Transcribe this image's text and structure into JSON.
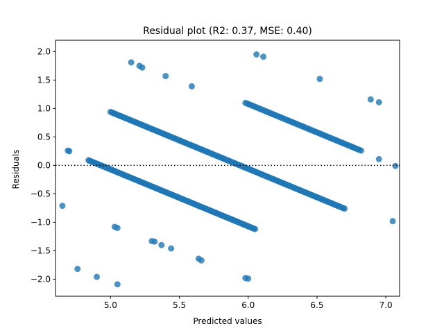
{
  "chart_data": {
    "type": "scatter",
    "title": "Residual plot (R2: 0.37, MSE: 0.40)",
    "xlabel": "Predicted values",
    "ylabel": "Residuals",
    "xlim": [
      4.6,
      7.1
    ],
    "ylim": [
      -2.3,
      2.2
    ],
    "xticks": [
      5.0,
      5.5,
      6.0,
      6.5,
      7.0
    ],
    "xtick_labels": [
      "5.0",
      "5.5",
      "6.0",
      "6.5",
      "7.0"
    ],
    "yticks": [
      -2.0,
      -1.5,
      -1.0,
      -0.5,
      0.0,
      0.5,
      1.0,
      1.5,
      2.0
    ],
    "ytick_labels": [
      "−2.0",
      "−1.5",
      "−1.0",
      "−0.5",
      "0.0",
      "0.5",
      "1.0",
      "1.5",
      "2.0"
    ],
    "reference_line": {
      "y": 0.0,
      "style": "dotted"
    },
    "grid": false,
    "legend": "none",
    "color": "#1f77b4",
    "point_alpha": 0.8,
    "band_slope": -1.0,
    "bands": [
      {
        "intercept": 4.93,
        "x_from": 4.84,
        "x_to": 6.05,
        "points": 130
      },
      {
        "intercept": 5.94,
        "x_from": 5.0,
        "x_to": 6.7,
        "points": 170
      },
      {
        "intercept": 7.08,
        "x_from": 5.98,
        "x_to": 6.82,
        "points": 72
      }
    ],
    "extra_points": [
      {
        "x": 4.65,
        "y": -0.71
      },
      {
        "x": 4.69,
        "y": 0.26
      },
      {
        "x": 4.7,
        "y": 0.25
      },
      {
        "x": 4.76,
        "y": -1.82
      },
      {
        "x": 4.9,
        "y": -1.96
      },
      {
        "x": 5.03,
        "y": -1.08
      },
      {
        "x": 5.05,
        "y": -1.1
      },
      {
        "x": 5.05,
        "y": -2.09
      },
      {
        "x": 5.15,
        "y": 1.81
      },
      {
        "x": 5.21,
        "y": 1.75
      },
      {
        "x": 5.23,
        "y": 1.72
      },
      {
        "x": 5.3,
        "y": -1.33
      },
      {
        "x": 5.32,
        "y": -1.34
      },
      {
        "x": 5.37,
        "y": -1.4
      },
      {
        "x": 5.4,
        "y": 1.57
      },
      {
        "x": 5.44,
        "y": -1.46
      },
      {
        "x": 5.59,
        "y": 1.39
      },
      {
        "x": 5.64,
        "y": -1.64
      },
      {
        "x": 5.66,
        "y": -1.67
      },
      {
        "x": 5.98,
        "y": -1.98
      },
      {
        "x": 6.0,
        "y": -1.99
      },
      {
        "x": 6.06,
        "y": 1.95
      },
      {
        "x": 6.11,
        "y": 1.91
      },
      {
        "x": 6.52,
        "y": 1.52
      },
      {
        "x": 6.89,
        "y": 1.16
      },
      {
        "x": 6.95,
        "y": 1.11
      },
      {
        "x": 6.95,
        "y": 0.11
      },
      {
        "x": 7.05,
        "y": -0.98
      },
      {
        "x": 7.07,
        "y": -0.01
      }
    ]
  }
}
